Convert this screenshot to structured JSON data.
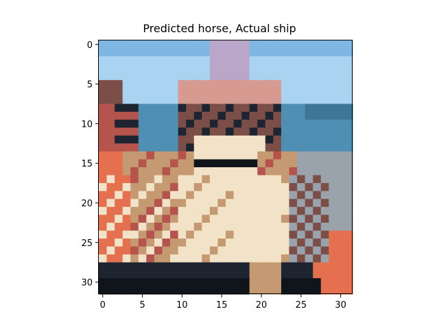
{
  "figure": {
    "title": "Predicted horse, Actual ship",
    "x_ticks": [
      "0",
      "5",
      "10",
      "15",
      "20",
      "25",
      "30"
    ],
    "y_ticks": [
      "0",
      "5",
      "10",
      "15",
      "20",
      "25",
      "30"
    ]
  },
  "image": {
    "description": "32x32 pixelated photo of a boat deck on the sea with a blue sky",
    "grid_size": [
      32,
      32
    ],
    "palette": {
      "sky_light": "#a9d3f1",
      "sky_mid": "#7fb6e2",
      "sea": "#4f8fb3",
      "sea_dark": "#3d7797",
      "hull_red": "#b4544c",
      "orange": "#e4704f",
      "cream": "#f2e2c8",
      "tan": "#c59a72",
      "dark": "#1e2530",
      "black": "#10141b",
      "brown": "#7b4e48",
      "gray": "#9aa2ab",
      "pink": "#d69a91",
      "mast": "#b9a6c8"
    }
  }
}
